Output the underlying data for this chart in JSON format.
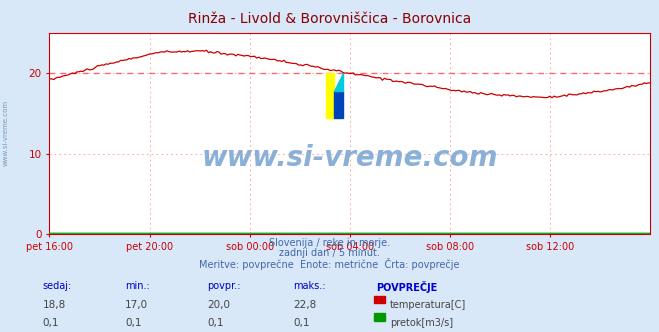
{
  "title": "Rinža - Livold & Borovniščica - Borovnica",
  "title_color": "#880000",
  "bg_color": "#d8e8f8",
  "plot_bg_color": "#ffffff",
  "grid_color": "#ffb0b0",
  "axis_color": "#cc0000",
  "ylabel_color": "#4444aa",
  "xlabel_color": "#4444aa",
  "watermark_text": "www.si-vreme.com",
  "watermark_color": "#8ab0d8",
  "sub_text1": "Slovenija / reke in morje.",
  "sub_text2": "zadnji dan / 5 minut.",
  "sub_text3": "Meritve: povprečne  Enote: metrične  Črta: povprečje",
  "sub_text_color": "#4466aa",
  "x_tick_labels": [
    "pet 16:00",
    "pet 20:00",
    "sob 00:00",
    "sob 04:00",
    "sob 08:00",
    "sob 12:00"
  ],
  "x_tick_positions": [
    0.0,
    0.1667,
    0.3333,
    0.5,
    0.6667,
    0.8333
  ],
  "ylim": [
    0,
    25
  ],
  "yticks": [
    0,
    10,
    20
  ],
  "avg_line_value": 20.0,
  "avg_line_color": "#ff6666",
  "temp_line_color": "#cc0000",
  "flow_line_color": "#009900",
  "table_headers": [
    "sedaj:",
    "min.:",
    "povpr.:",
    "maks.:",
    "POVPREČJE"
  ],
  "table_row1": [
    "18,8",
    "17,0",
    "20,0",
    "22,8"
  ],
  "table_row2": [
    "0,1",
    "0,1",
    "0,1",
    "0,1"
  ],
  "table_label1": "temperatura[C]",
  "table_label2": "pretok[m3/s]",
  "table_header_color": "#0000cc",
  "table_value_color": "#444444",
  "table_legend_color1": "#cc0000",
  "table_legend_color2": "#009900",
  "logo_yellow": "#ffff00",
  "logo_cyan": "#00ccdd",
  "logo_blue": "#0044bb",
  "n_points": 288
}
